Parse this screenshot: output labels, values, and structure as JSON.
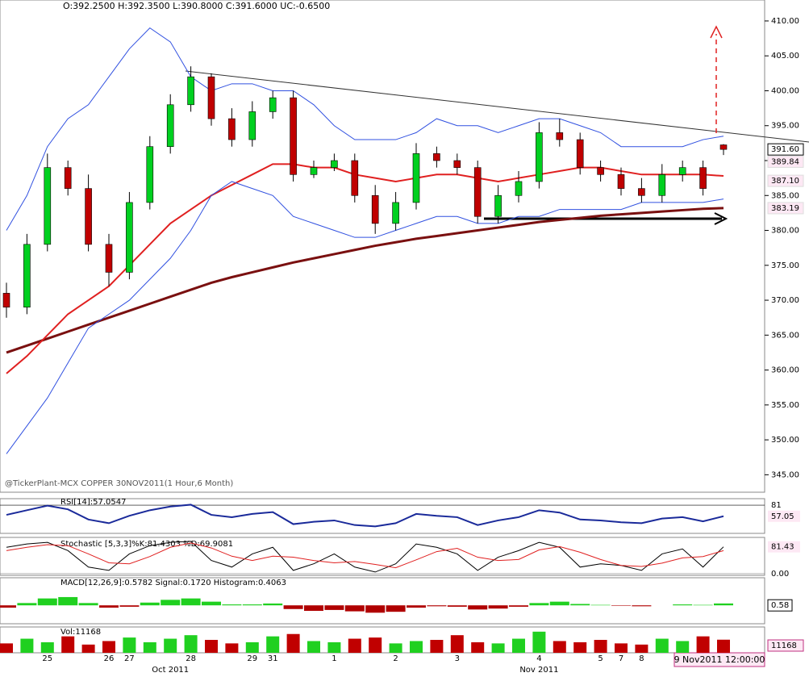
{
  "chart_data": {
    "type": "candlestick",
    "title": "O:392.2500  H:392.3500  L:390.8000  C:391.6000  UC:-0.6500",
    "subtitle": "@TickerPlant-MCX COPPER 30NOV2011(1 Hour,6 Month)",
    "categories": [
      null,
      null,
      "25",
      null,
      null,
      "26",
      "27",
      null,
      null,
      "28",
      null,
      null,
      "29",
      "31",
      null,
      null,
      "1",
      null,
      null,
      "2",
      null,
      null,
      "3",
      null,
      null,
      null,
      "4",
      null,
      null,
      "5",
      "7",
      "8",
      null,
      null,
      null,
      null
    ],
    "months": [
      null,
      null,
      null,
      null,
      null,
      null,
      null,
      null,
      "Oct 2011",
      null,
      null,
      null,
      null,
      null,
      null,
      null,
      null,
      null,
      null,
      null,
      null,
      null,
      null,
      null,
      null,
      null,
      "Nov 2011",
      null,
      null,
      null,
      null,
      null,
      null,
      null,
      null,
      null
    ],
    "timestamp": "9 Nov2011 12:00:00",
    "open": [
      371,
      369,
      378,
      389,
      386,
      378,
      374,
      384,
      392,
      398,
      402,
      396,
      393,
      397,
      399,
      388,
      389,
      390,
      385,
      381,
      384,
      391,
      390,
      389,
      382,
      385,
      387,
      394,
      393,
      389,
      388,
      386,
      385,
      388,
      389,
      392.25
    ],
    "high": [
      372.5,
      379.5,
      391,
      390,
      388,
      379.5,
      385.5,
      393.5,
      399.5,
      403.5,
      402.5,
      397.5,
      398.5,
      400,
      400,
      390,
      391,
      391,
      386.5,
      385.5,
      392.5,
      392,
      391,
      390,
      386.5,
      388.5,
      395.5,
      396,
      394,
      390,
      389,
      387.5,
      389.5,
      390,
      390,
      392.35
    ],
    "low": [
      367.5,
      368,
      377,
      385,
      377,
      372,
      373,
      383,
      391,
      397,
      395,
      392,
      392,
      396,
      387,
      387.5,
      388.5,
      384,
      379.5,
      380,
      383,
      389,
      388,
      381,
      381,
      384,
      386,
      392,
      388,
      387,
      385,
      384,
      384,
      387,
      385,
      390.8
    ],
    "close": [
      369,
      378,
      389,
      386,
      378,
      374,
      384,
      392,
      398,
      402,
      396,
      393,
      397,
      399,
      388,
      389,
      390,
      385,
      381,
      384,
      391,
      390,
      389,
      382,
      385,
      387,
      394,
      393,
      389,
      388,
      386,
      385,
      388,
      389,
      386,
      391.6
    ],
    "lines": [
      {
        "color": "#7a1010",
        "values": [
          362.5,
          363.5,
          364.5,
          365.5,
          366.5,
          367.5,
          368.5,
          369.5,
          370.5,
          371.5,
          372.5,
          373.3,
          374,
          374.7,
          375.4,
          376,
          376.6,
          377.2,
          377.8,
          378.3,
          378.8,
          379.2,
          379.6,
          380,
          380.4,
          380.8,
          381.2,
          381.5,
          381.8,
          382.1,
          382.3,
          382.5,
          382.7,
          382.9,
          383.1,
          383.19
        ]
      },
      {
        "color": "#e02020",
        "values": [
          359.5,
          362,
          365,
          368,
          370,
          372,
          375,
          378,
          381,
          383,
          385,
          386.5,
          388,
          389.5,
          389.5,
          389,
          389,
          388,
          387.5,
          387,
          387.5,
          388,
          388,
          387.5,
          387,
          387.5,
          388,
          388.5,
          389,
          389,
          388.5,
          388,
          388,
          388,
          388,
          387.8
        ]
      },
      {
        "color": "#3050e0",
        "values": [
          380,
          385,
          392,
          396,
          398,
          402,
          406,
          409,
          407,
          402,
          400,
          401,
          401,
          400,
          400,
          398,
          395,
          393,
          393,
          393,
          394,
          396,
          395,
          395,
          394,
          395,
          396,
          396,
          395,
          394,
          392,
          392,
          392,
          392,
          393,
          393.5
        ]
      },
      {
        "color": "#3050e0",
        "values": [
          348,
          352,
          356,
          361,
          366,
          368,
          370,
          373,
          376,
          380,
          385,
          387,
          386,
          385,
          382,
          381,
          380,
          379,
          379,
          380,
          381,
          382,
          382,
          381,
          381,
          382,
          382,
          383,
          383,
          383,
          383,
          384,
          384,
          384,
          384,
          384.5
        ]
      }
    ],
    "ylim": [
      342.5,
      413
    ],
    "yticks": [
      {
        "value": 345,
        "label": "345.00"
      },
      {
        "value": 350,
        "label": "350.00"
      },
      {
        "value": 355,
        "label": "355.00"
      },
      {
        "value": 360,
        "label": "360.00"
      },
      {
        "value": 365,
        "label": "365.00"
      },
      {
        "value": 370,
        "label": "370.00"
      },
      {
        "value": 375,
        "label": "375.00"
      },
      {
        "value": 380,
        "label": "380.00"
      },
      {
        "value": 385,
        "label": "385.00"
      },
      {
        "value": 390,
        "label": "390.00"
      },
      {
        "value": 395,
        "label": "395.00"
      },
      {
        "value": 400,
        "label": "400.00"
      },
      {
        "value": 405,
        "label": "405.00"
      },
      {
        "value": 410,
        "label": "410.00"
      }
    ],
    "price_labels": [
      {
        "value": 391.6,
        "label": "391.60"
      },
      {
        "value": 389.84,
        "label": "389.84"
      },
      {
        "value": 387.1,
        "label": "387.10"
      },
      {
        "value": 383.19,
        "label": "383.19"
      }
    ],
    "rsi": {
      "label": "RSI[14]:57.0547",
      "color": "#1a2a9a",
      "values": [
        60,
        70,
        80,
        72,
        50,
        42,
        58,
        70,
        78,
        82,
        60,
        55,
        62,
        66,
        40,
        45,
        48,
        38,
        35,
        42,
        62,
        58,
        55,
        38,
        48,
        55,
        70,
        65,
        50,
        48,
        44,
        42,
        52,
        55,
        46,
        57.05
      ],
      "ylim": [
        20,
        95
      ],
      "yticks": [
        81
      ],
      "value_label": "57.05"
    },
    "stochastic": {
      "label": "Stochastic [5,3,3]%K:81.4303 %D:69.9081",
      "k": [
        80,
        90,
        95,
        70,
        20,
        10,
        60,
        85,
        95,
        98,
        40,
        20,
        60,
        80,
        10,
        30,
        60,
        20,
        5,
        30,
        90,
        80,
        60,
        10,
        50,
        70,
        95,
        80,
        20,
        30,
        25,
        10,
        60,
        75,
        20,
        81.43
      ],
      "d": [
        70,
        80,
        88,
        85,
        60,
        33,
        30,
        52,
        80,
        93,
        78,
        53,
        40,
        53,
        50,
        40,
        33,
        37,
        28,
        18,
        42,
        67,
        77,
        50,
        40,
        43,
        72,
        82,
        65,
        43,
        25,
        22,
        32,
        48,
        52,
        69.91
      ],
      "ylim": [
        -5,
        110
      ],
      "yticks": [
        {
          "value": 0,
          "label": "0.00"
        }
      ],
      "value_label": "81.43"
    },
    "macd": {
      "label": "MACD[12,26,9]:0.5782 Signal:0.1720 Histogram:0.4063",
      "histogram": [
        -0.5,
        0.5,
        1.5,
        1.8,
        0.5,
        -0.5,
        -0.3,
        0.6,
        1.2,
        1.5,
        0.8,
        0.2,
        0.2,
        0.4,
        -0.8,
        -1.2,
        -1,
        -1.3,
        -1.6,
        -1.4,
        -0.5,
        -0.2,
        -0.3,
        -0.9,
        -0.7,
        -0.3,
        0.5,
        0.8,
        0.3,
        0.1,
        -0.1,
        -0.2,
        0,
        0.2,
        0.1,
        0.41
      ],
      "ylim": [
        -4,
        6
      ],
      "value_label": "0.58"
    },
    "volume": {
      "label": "Vol:11168",
      "values": [
        8000,
        12000,
        9000,
        14000,
        7000,
        10000,
        13000,
        9000,
        12000,
        15000,
        11000,
        8000,
        9000,
        14000,
        16000,
        10000,
        9000,
        12000,
        13000,
        8000,
        10000,
        11000,
        15000,
        9000,
        8000,
        12000,
        18000,
        10000,
        9000,
        11000,
        8000,
        7000,
        12000,
        10000,
        14000,
        11168
      ],
      "ylim": [
        0,
        22000
      ],
      "value_label": "11168"
    }
  }
}
